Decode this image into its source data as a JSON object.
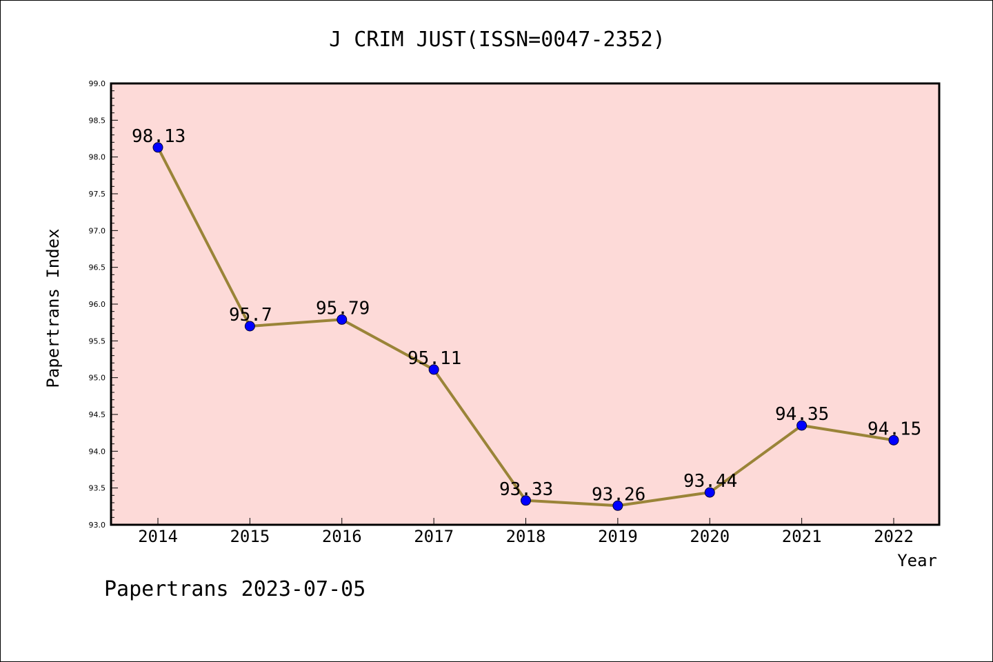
{
  "chart_data": {
    "type": "line",
    "title": "J CRIM JUST(ISSN=0047-2352)",
    "xlabel": "Year",
    "ylabel": "Papertrans Index",
    "categories": [
      "2014",
      "2015",
      "2016",
      "2017",
      "2018",
      "2019",
      "2020",
      "2021",
      "2022"
    ],
    "values": [
      98.13,
      95.7,
      95.79,
      95.11,
      93.33,
      93.26,
      93.44,
      94.35,
      94.15
    ],
    "data_labels": [
      "98.13",
      "95.7",
      "95.79",
      "95.11",
      "93.33",
      "93.26",
      "93.44",
      "94.35",
      "94.15"
    ],
    "ylim": [
      93.0,
      99.0
    ],
    "yticks": [
      "93.0",
      "93.5",
      "94.0",
      "94.5",
      "95.0",
      "95.5",
      "96.0",
      "96.5",
      "97.0",
      "97.5",
      "98.0",
      "98.5",
      "99.0"
    ],
    "grid": false,
    "colors": {
      "plot_background": "#fddad8",
      "line": "#9a8438",
      "marker": "#0000ff"
    }
  },
  "footer": "Papertrans 2023-07-05"
}
